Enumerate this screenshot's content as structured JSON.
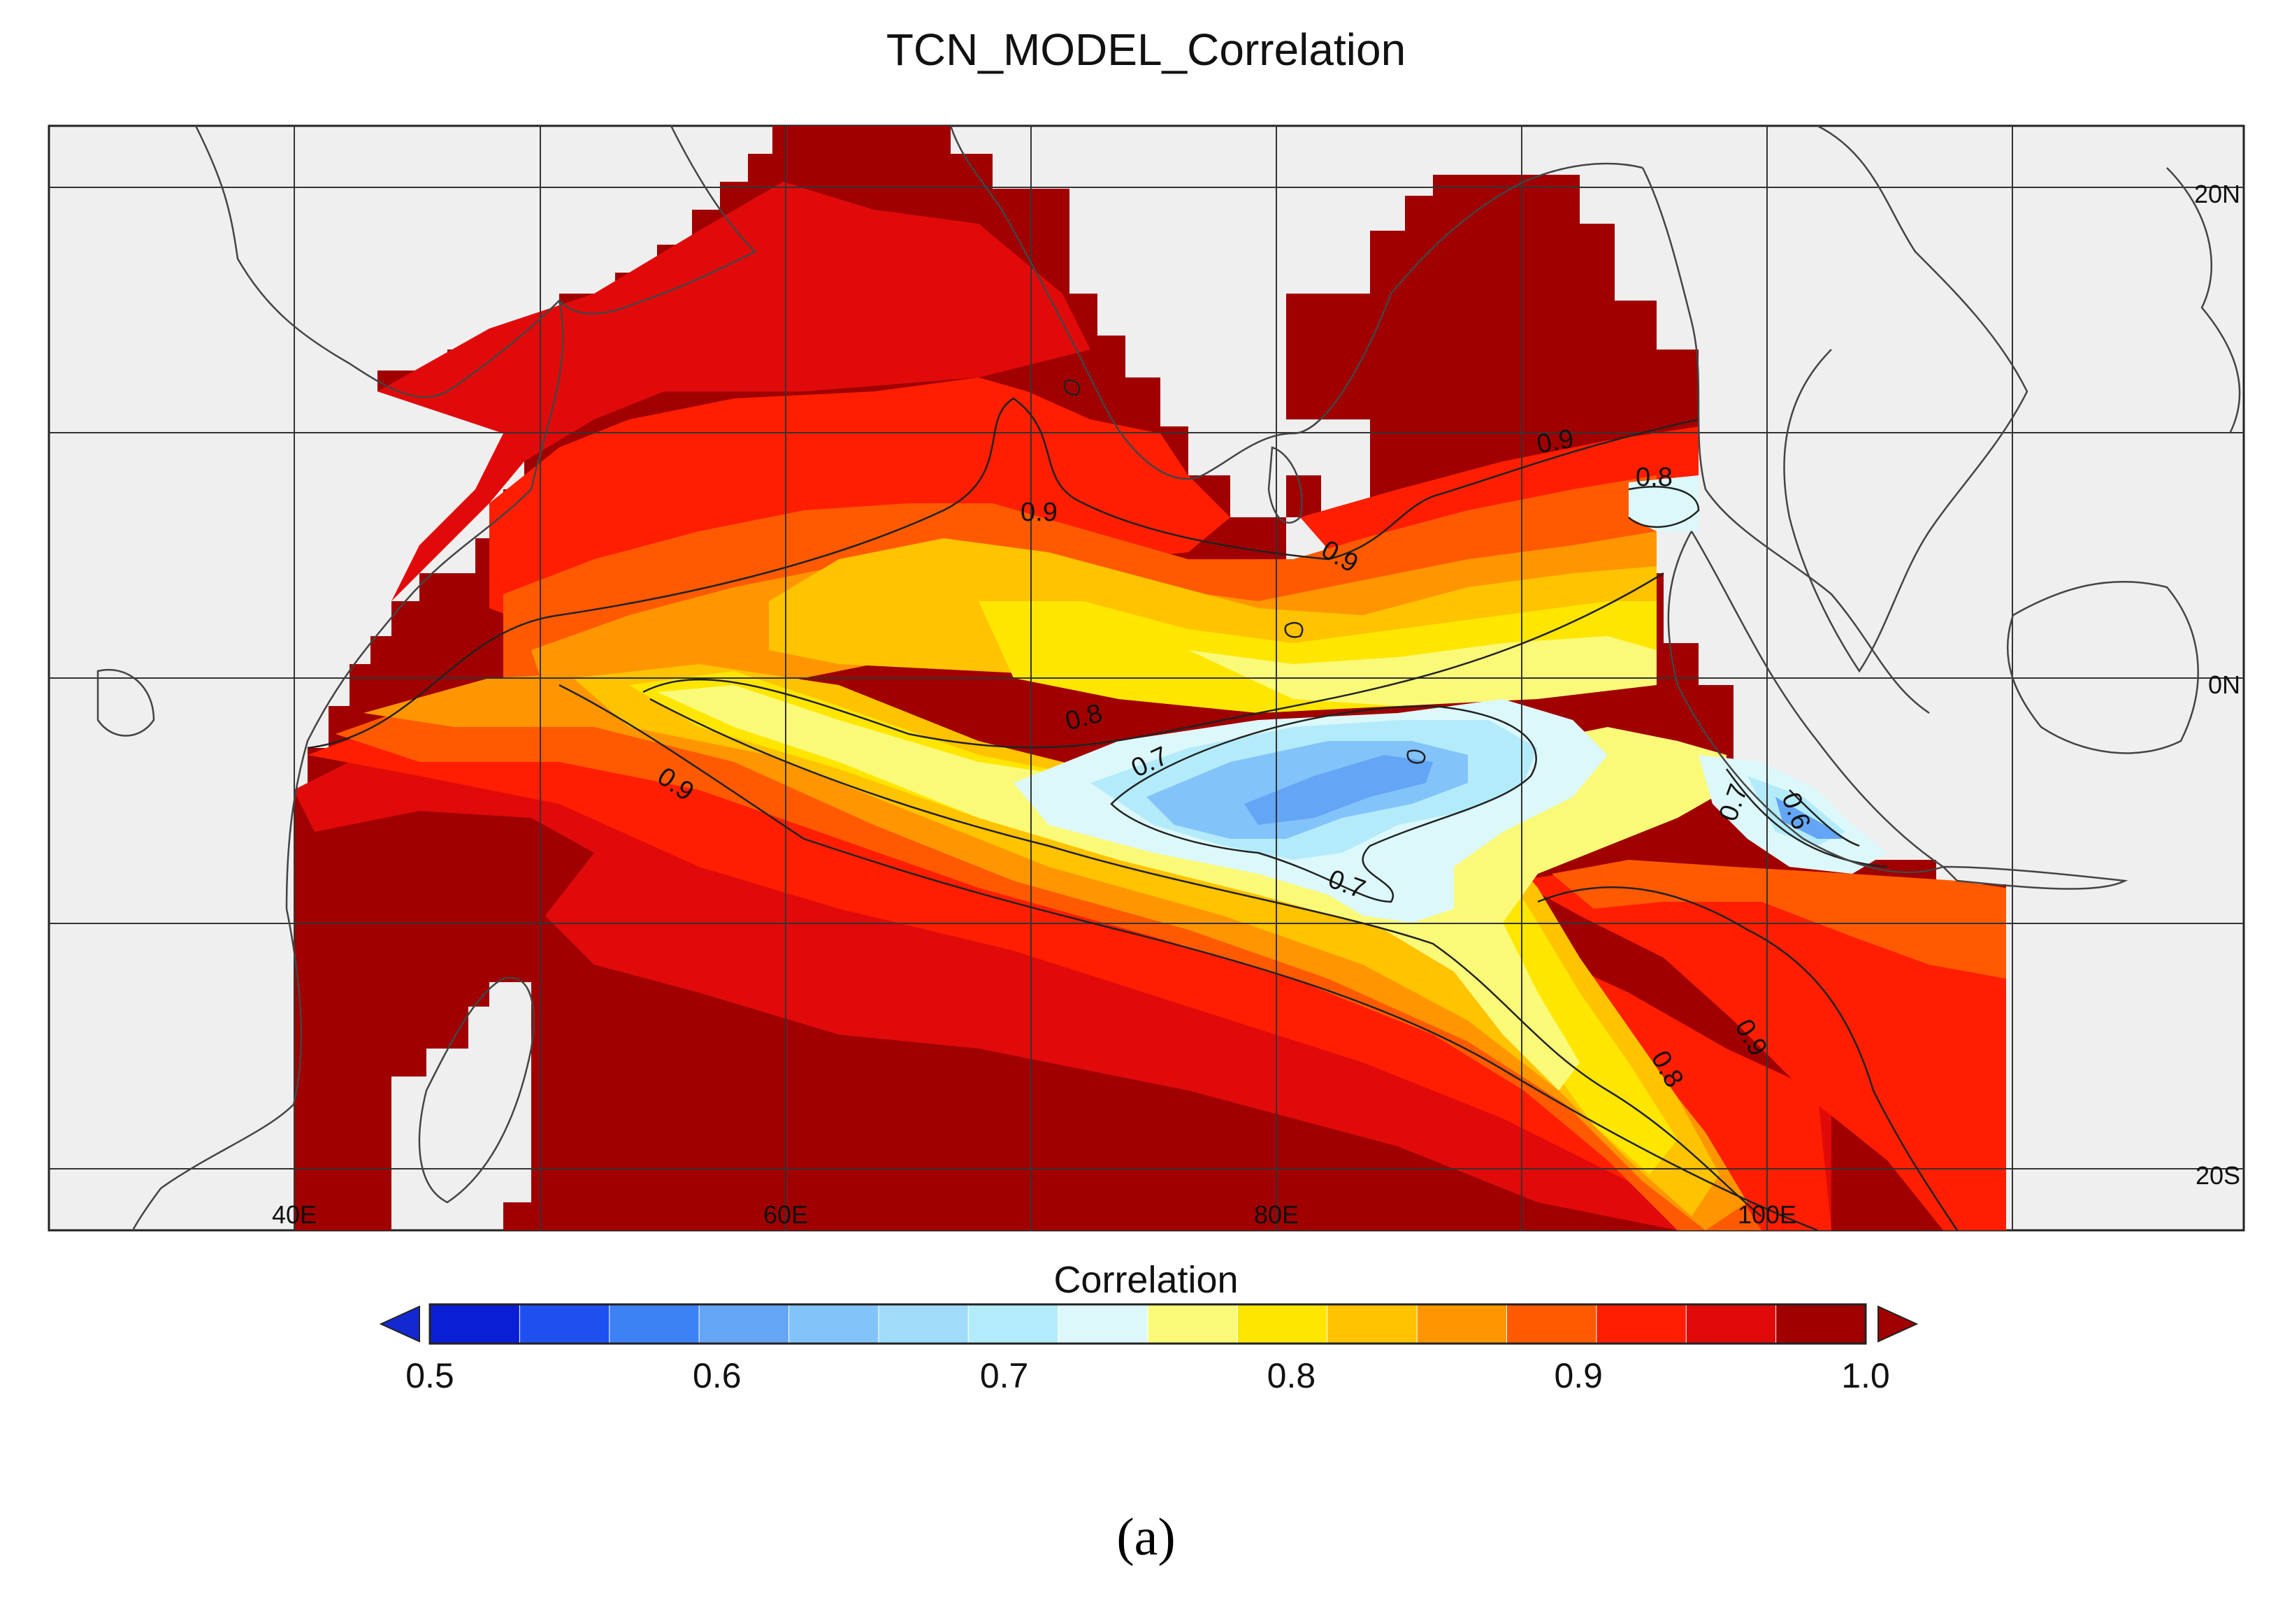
{
  "title": "TCN_MODEL_Correlation",
  "caption": "(a)",
  "map": {
    "lon_labels": [
      "40E",
      "60E",
      "80E",
      "100E"
    ],
    "lat_labels": [
      "20N",
      "0N",
      "20S"
    ],
    "contour_labels": [
      "0.9",
      "0.9",
      "0.9",
      "0.9",
      "0.9",
      "0.8",
      "0.8",
      "0.8",
      "0.7",
      "0.7",
      "0.7",
      "0.6"
    ],
    "land_color": "#efefef",
    "coast_color": "#444444"
  },
  "colorbar": {
    "title": "Correlation",
    "tick_labels": [
      "0.5",
      "0.6",
      "0.7",
      "0.8",
      "0.9",
      "1.0"
    ],
    "colors": [
      "#0a1ed6",
      "#1e50f0",
      "#3c82f5",
      "#64a5f5",
      "#82c3fa",
      "#a0dcfa",
      "#b4ebfa",
      "#dcf8fa",
      "#fafa78",
      "#ffe600",
      "#ffc300",
      "#ff9600",
      "#ff5a00",
      "#ff1e00",
      "#e10a0a",
      "#a00000"
    ],
    "under_color": "#1428d2",
    "over_color": "#a00000",
    "min": 0.5,
    "max": 1.0
  }
}
